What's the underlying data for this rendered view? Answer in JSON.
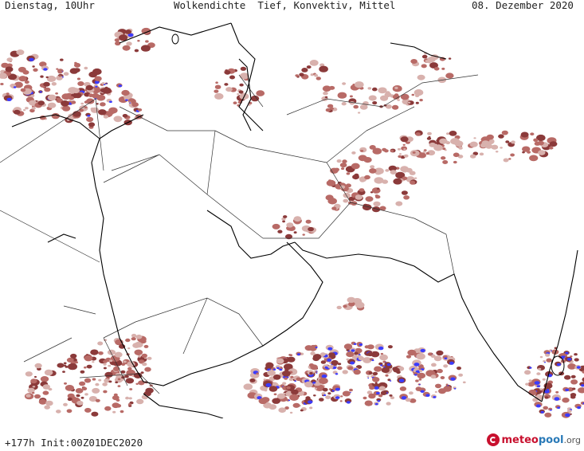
{
  "header": {
    "left": "Dienstag, 10Uhr",
    "center": "Wolkendichte  Tief, Konvektiv, Mittel",
    "right": "08. Dezember 2020"
  },
  "footer": {
    "init": "+177h Init:00Z01DEC2020",
    "logo_part1": "meteo",
    "logo_part2": "pool",
    "logo_part3": ".org"
  },
  "colors": {
    "cloud_light": "#d8b1ad",
    "cloud_mid": "#b86a66",
    "cloud_dark": "#8b3a3a",
    "convective": "#3b3bff",
    "coastline": "#000000",
    "border": "#333333"
  }
}
